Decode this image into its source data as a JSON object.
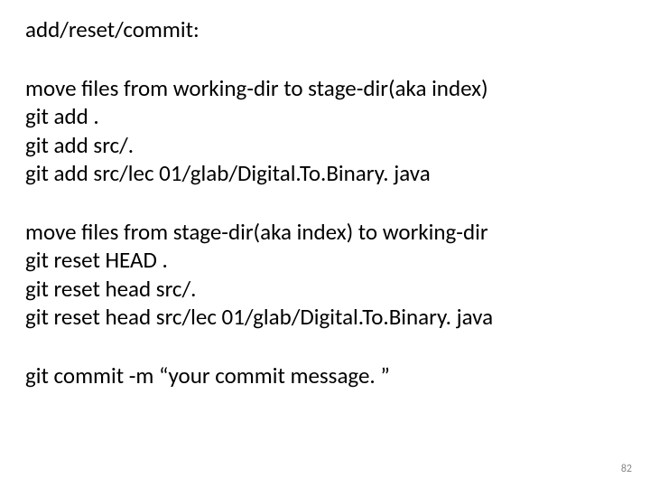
{
  "title": "add/reset/commit:",
  "blocks": [
    {
      "lines": [
        "move files from working-dir to stage-dir(aka index)",
        "git add .",
        "git add src/.",
        "git add src/lec 01/glab/Digital.To.Binary. java"
      ]
    },
    {
      "lines": [
        "move files from stage-dir(aka index) to working-dir",
        "git reset HEAD .",
        "git reset head src/.",
        "git reset head src/lec 01/glab/Digital.To.Binary. java"
      ]
    },
    {
      "lines": [
        "git commit -m “your commit message. ”"
      ]
    }
  ],
  "page_number": "82",
  "style": {
    "background_color": "#ffffff",
    "text_color": "#000000",
    "page_number_color": "#8a8a8a",
    "title_fontsize": 25,
    "body_fontsize": 25,
    "page_number_fontsize": 12,
    "font_family": "Calibri"
  }
}
